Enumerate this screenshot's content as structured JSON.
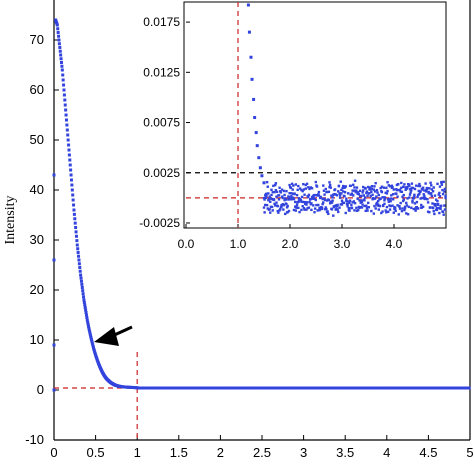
{
  "chart_data": [
    {
      "id": "main",
      "type": "scatter",
      "ylabel": "Intensity",
      "xlabel": "",
      "xlim": [
        0,
        5
      ],
      "ylim": [
        -10,
        78
      ],
      "xticks": [
        0,
        0.5,
        1,
        1.5,
        2,
        2.5,
        3,
        3.5,
        4,
        4.5,
        5
      ],
      "xtick_labels": [
        "0",
        "0.5",
        "1",
        "1.5",
        "2",
        "2.5",
        "3",
        "3.5",
        "4",
        "4.5",
        "5"
      ],
      "yticks": [
        -10,
        0,
        10,
        20,
        30,
        40,
        50,
        60,
        70
      ],
      "ytick_labels": [
        "-10",
        "0",
        "10",
        "20",
        "30",
        "40",
        "50",
        "60",
        "70"
      ],
      "grid": false,
      "series_color": "#3344dd",
      "reference_line_color": "#cc2222",
      "reference_lines": {
        "x": 1.0,
        "y": 0.4
      },
      "points": [
        [
          0.0,
          0.0
        ],
        [
          0.0,
          43
        ],
        [
          0.0,
          26
        ],
        [
          0.0,
          9
        ],
        [
          0.02,
          74
        ],
        [
          0.04,
          73
        ],
        [
          0.06,
          70
        ],
        [
          0.08,
          67
        ],
        [
          0.1,
          64
        ],
        [
          0.12,
          60
        ],
        [
          0.14,
          56
        ],
        [
          0.16,
          52
        ],
        [
          0.18,
          48
        ],
        [
          0.2,
          44
        ],
        [
          0.22,
          40
        ],
        [
          0.24,
          36
        ],
        [
          0.26,
          32.5
        ],
        [
          0.28,
          29
        ],
        [
          0.3,
          26
        ],
        [
          0.32,
          23
        ],
        [
          0.34,
          20.5
        ],
        [
          0.36,
          18
        ],
        [
          0.38,
          16
        ],
        [
          0.4,
          14
        ],
        [
          0.42,
          12.3
        ],
        [
          0.44,
          10.8
        ],
        [
          0.46,
          9.4
        ],
        [
          0.48,
          8.1
        ],
        [
          0.5,
          7.0
        ],
        [
          0.52,
          6.0
        ],
        [
          0.54,
          5.1
        ],
        [
          0.56,
          4.3
        ],
        [
          0.58,
          3.6
        ],
        [
          0.6,
          3.0
        ],
        [
          0.62,
          2.5
        ],
        [
          0.64,
          2.1
        ],
        [
          0.66,
          1.8
        ],
        [
          0.68,
          1.5
        ],
        [
          0.7,
          1.3
        ],
        [
          0.72,
          1.1
        ],
        [
          0.74,
          0.95
        ],
        [
          0.76,
          0.85
        ],
        [
          0.78,
          0.75
        ],
        [
          0.8,
          0.7
        ],
        [
          0.85,
          0.6
        ],
        [
          0.9,
          0.55
        ],
        [
          0.95,
          0.5
        ],
        [
          1.0,
          0.45
        ]
      ],
      "baseline_value": 0.4,
      "baseline_from_x": 1.0,
      "annotation": "arrow"
    },
    {
      "id": "inset",
      "type": "scatter",
      "xlim": [
        0,
        5
      ],
      "ylim": [
        -0.003,
        0.0195
      ],
      "xticks": [
        0,
        1,
        2,
        3,
        4
      ],
      "xtick_labels": [
        "0.0",
        "1.0",
        "2.0",
        "3.0",
        "4.0"
      ],
      "yticks": [
        -0.0025,
        0.0025,
        0.0075,
        0.0125,
        0.0175
      ],
      "ytick_labels": [
        "-0.0025",
        "0.0025",
        "0.0075",
        "0.0125",
        "0.0175"
      ],
      "grid": false,
      "reference_lines": {
        "x": 1.0,
        "y_red": 0.0,
        "y_black": 0.0025
      },
      "points": [
        [
          1.2,
          0.0192
        ],
        [
          1.22,
          0.0165
        ],
        [
          1.25,
          0.014
        ],
        [
          1.27,
          0.0118
        ],
        [
          1.3,
          0.0098
        ],
        [
          1.32,
          0.008
        ],
        [
          1.35,
          0.0065
        ],
        [
          1.37,
          0.0052
        ],
        [
          1.4,
          0.004
        ],
        [
          1.43,
          0.003
        ],
        [
          1.46,
          0.0022
        ],
        [
          1.5,
          0.0015
        ]
      ],
      "noise_from_x": 1.5,
      "noise_center": 0.0,
      "noise_amplitude": 0.0018
    }
  ]
}
